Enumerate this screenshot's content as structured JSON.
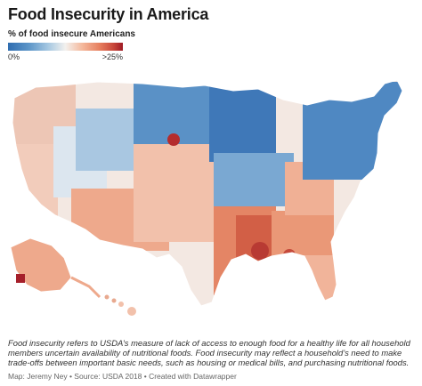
{
  "header": {
    "title": "Food Insecurity in America"
  },
  "legend": {
    "title": "% of food insecure Americans",
    "min_label": "0%",
    "max_label": ">25%",
    "colors": {
      "low": "#2f6db0",
      "mid": "#f3f1ee",
      "high": "#9e1a24"
    }
  },
  "map": {
    "subject": "US counties colored by % food insecure",
    "regions": [
      {
        "name": "pacific-northwest",
        "level": 0.45
      },
      {
        "name": "california",
        "level": 0.5
      },
      {
        "name": "great-basin",
        "level": 0.5
      },
      {
        "name": "southwest",
        "level": 0.65
      },
      {
        "name": "rockies",
        "level": 0.35
      },
      {
        "name": "northern-plains",
        "level": 0.2
      },
      {
        "name": "southern-plains",
        "level": 0.55
      },
      {
        "name": "upper-midwest",
        "level": 0.15
      },
      {
        "name": "midwest",
        "level": 0.3
      },
      {
        "name": "south",
        "level": 0.75
      },
      {
        "name": "mississippi-delta",
        "level": 0.9
      },
      {
        "name": "southeast",
        "level": 0.65
      },
      {
        "name": "appalachia",
        "level": 0.55
      },
      {
        "name": "northeast",
        "level": 0.2
      },
      {
        "name": "florida",
        "level": 0.55
      },
      {
        "name": "alaska",
        "level": 0.7
      },
      {
        "name": "hawaii",
        "level": 0.4
      }
    ]
  },
  "description": "Food insecurity refers to USDA’s measure of lack of access to enough food for a healthy life for all household members uncertain availability of nutritional foods. Food insecurity may reflect a household’s need to make trade-offs between important basic needs, such as housing or medical bills, and purchasing nutritional foods.",
  "credit": "Map: Jeremy Ney • Source: USDA 2018 • Created with Datawrapper"
}
